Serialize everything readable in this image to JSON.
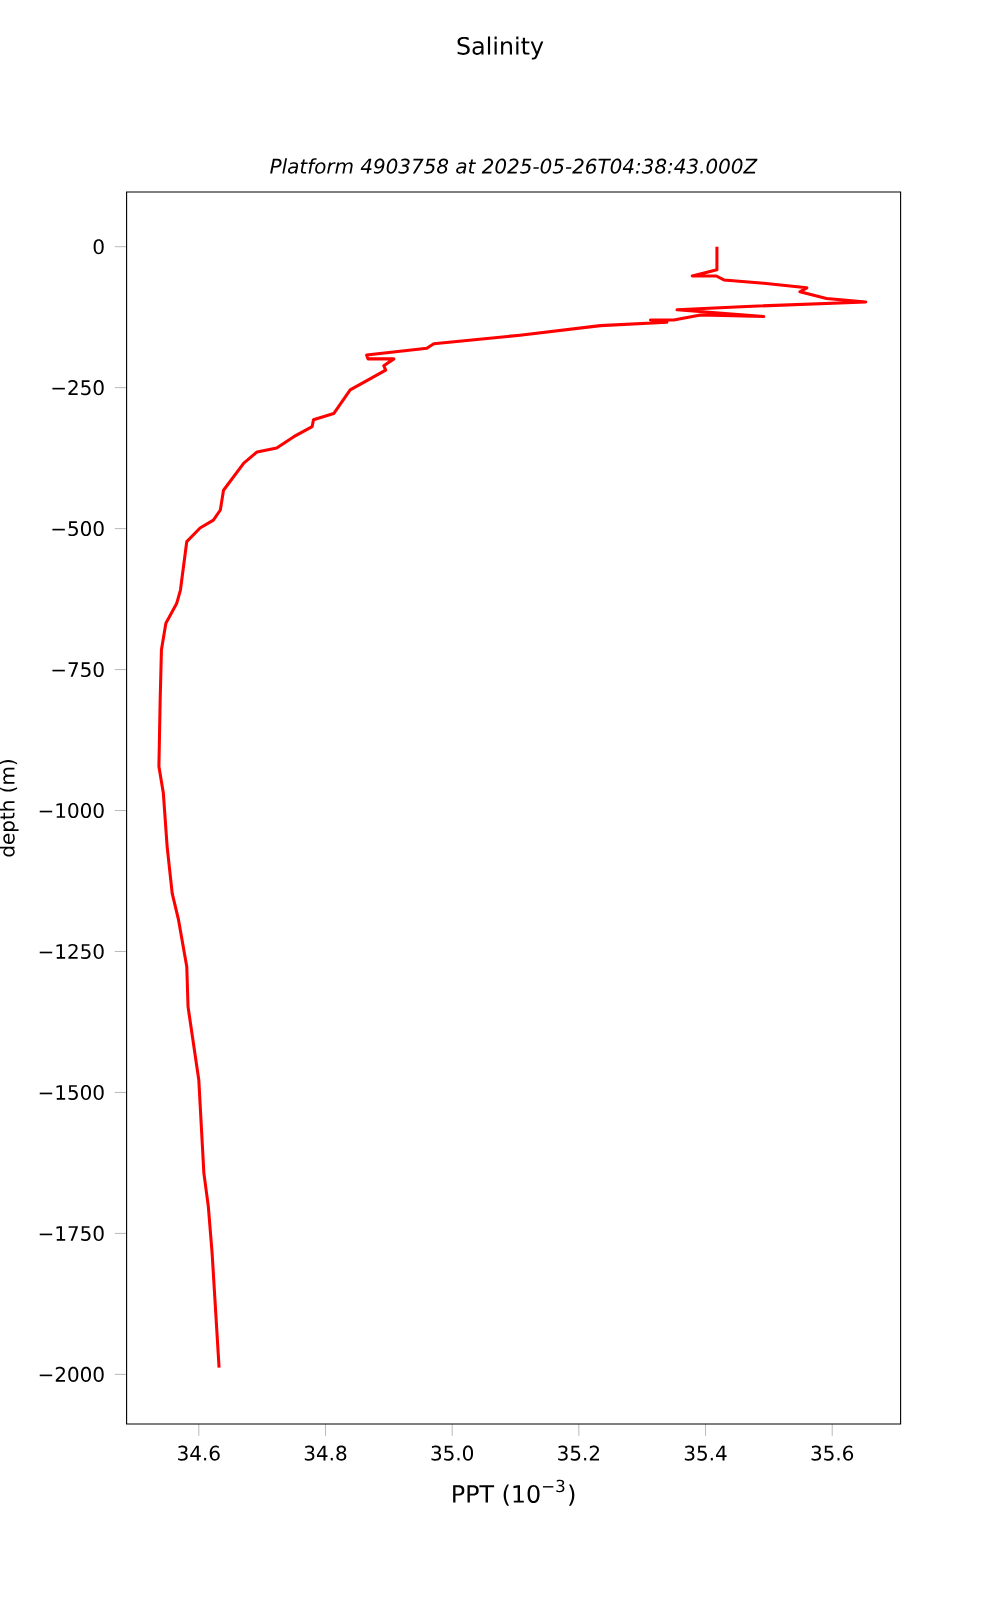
{
  "chart_data": {
    "type": "line",
    "title": "Salinity",
    "subtitle": "*Platform 4903758 at 2025-05-26T04:38:43.000Z*",
    "xlabel": "PPT (10$^{−3}$)",
    "ylabel": "depth (m)",
    "xlim": [
      34.486,
      35.708
    ],
    "ylim": [
      -2088,
      97
    ],
    "xticks": [
      34.6,
      34.8,
      {
        "value": 35.0,
        "label": "35.0"
      },
      35.2,
      35.4,
      35.6
    ],
    "yticks": [
      {
        "value": 0,
        "label": "0"
      },
      {
        "value": -250,
        "label": "−250"
      },
      {
        "value": -500,
        "label": "−500"
      },
      {
        "value": -750,
        "label": "−750"
      },
      {
        "value": -1000,
        "label": "−1000"
      },
      {
        "value": -1250,
        "label": "−1250"
      },
      {
        "value": -1500,
        "label": "−1500"
      },
      {
        "value": -1750,
        "label": "−1750"
      },
      {
        "value": -2000,
        "label": "−2000"
      }
    ],
    "marker": "none",
    "line_style": "solid",
    "series": [
      {
        "color": "#ff0000",
        "x": [
          35.418,
          35.418,
          35.379,
          35.417,
          35.429,
          35.492,
          35.56,
          35.549,
          35.591,
          35.653,
          35.465,
          35.355,
          35.492,
          35.392,
          35.35,
          35.313,
          35.339,
          35.234,
          35.107,
          34.971,
          34.96,
          34.865,
          34.867,
          34.908,
          34.892,
          34.895,
          34.871,
          34.839,
          34.813,
          34.781,
          34.779,
          34.75,
          34.723,
          34.692,
          34.671,
          34.639,
          34.634,
          34.623,
          34.602,
          34.581,
          34.571,
          34.565,
          34.548,
          34.541,
          34.539,
          34.537,
          34.544,
          34.55,
          34.558,
          34.568,
          34.581,
          34.583,
          34.6,
          34.608,
          34.615,
          34.621,
          34.632
        ],
        "values": [
          0,
          -41,
          -52,
          -52,
          -59,
          -65,
          -73,
          -80,
          -92,
          -98,
          -106,
          -112,
          -124,
          -121,
          -130,
          -130,
          -134,
          -140,
          -157,
          -172,
          -180,
          -192,
          -199,
          -199,
          -211,
          -219,
          -234,
          -254,
          -296,
          -307,
          -319,
          -337,
          -357,
          -364,
          -384,
          -432,
          -467,
          -485,
          -499,
          -523,
          -609,
          -633,
          -668,
          -715,
          -804,
          -922,
          -969,
          -1064,
          -1147,
          -1194,
          -1277,
          -1348,
          -1478,
          -1643,
          -1702,
          -1785,
          -1988
        ]
      }
    ]
  }
}
